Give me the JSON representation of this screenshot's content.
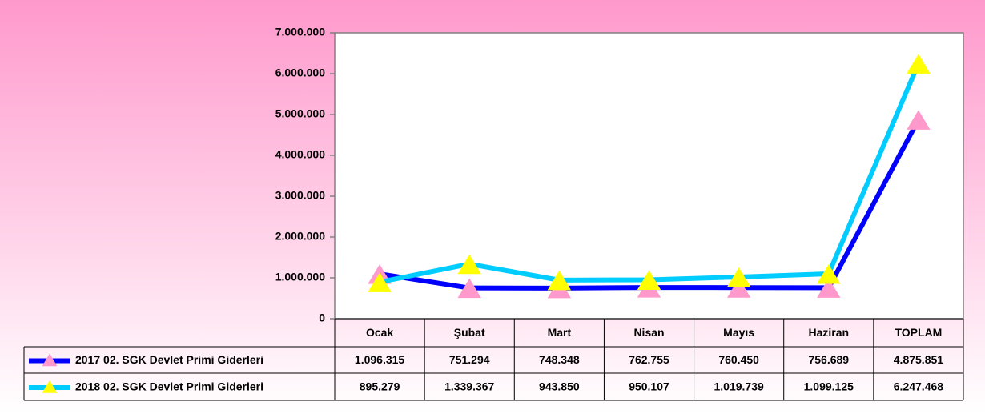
{
  "chart_data": {
    "type": "line",
    "categories": [
      "Ocak",
      "Şubat",
      "Mart",
      "Nisan",
      "Mayıs",
      "Haziran",
      "TOPLAM"
    ],
    "series": [
      {
        "name": "2017 02. SGK Devlet Primi Giderleri",
        "color": "#0000ff",
        "marker_color": "#ff99cc",
        "values": [
          1096315,
          751294,
          748348,
          762755,
          760450,
          756689,
          4875851
        ],
        "value_labels": [
          "1.096.315",
          "751.294",
          "748.348",
          "762.755",
          "760.450",
          "756.689",
          "4.875.851"
        ]
      },
      {
        "name": "2018 02. SGK Devlet Primi Giderleri",
        "color": "#00ccff",
        "marker_color": "#ffff00",
        "values": [
          895279,
          1339367,
          943850,
          950107,
          1019739,
          1099125,
          6247468
        ],
        "value_labels": [
          "895.279",
          "1.339.367",
          "943.850",
          "950.107",
          "1.019.739",
          "1.099.125",
          "6.247.468"
        ]
      }
    ],
    "ylim": [
      0,
      7000000
    ],
    "yticks": [
      0,
      {
        "value": 1000000,
        "label": "1.000.000"
      },
      {
        "value": 2000000,
        "label": "2.000.000"
      },
      {
        "value": 3000000,
        "label": "3.000.000"
      },
      {
        "value": 4000000,
        "label": "4.000.000"
      },
      {
        "value": 5000000,
        "label": "5.000.000"
      },
      {
        "value": 6000000,
        "label": "6.000.000"
      },
      {
        "value": 7000000,
        "label": "7.000.000"
      }
    ],
    "grid": false
  }
}
